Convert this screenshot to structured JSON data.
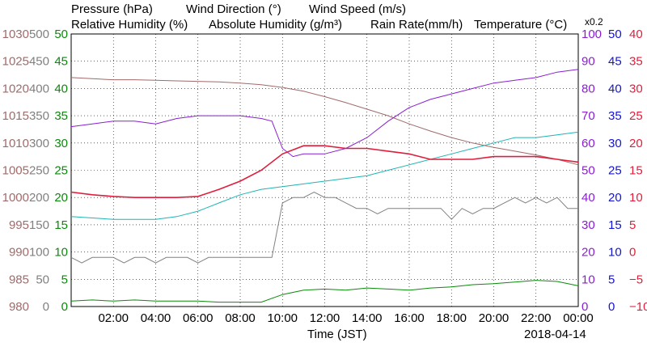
{
  "legend": {
    "pressure": "Pressure (hPa)",
    "wind_direction": "Wind Direction (°)",
    "wind_speed": "Wind Speed (m/s)",
    "relative_humidity": "Relative Humidity (%)",
    "absolute_humidity": "Absolute Humidity (g/m³)",
    "rain_rate": "Rain Rate(mm/h)",
    "temperature": "Temperature (°C)",
    "rain_multiplier": "x0.2"
  },
  "xlabel": "Time (JST)",
  "date_label": "2018-04-14",
  "colors": {
    "pressure": "#a06a6a",
    "wind_direction": "#808080",
    "wind_speed": "#0a8a0a",
    "relative_humidity": "#8a1ed2",
    "absolute_humidity": "#1eb4b4",
    "rain_rate": "#1414d2",
    "temperature": "#e01e3c",
    "grid": "#000000"
  },
  "chart_data": {
    "type": "line",
    "x_ticks": [
      "02:00",
      "04:00",
      "06:00",
      "08:00",
      "10:00",
      "12:00",
      "14:00",
      "16:00",
      "18:00",
      "20:00",
      "22:00",
      "00:00"
    ],
    "x_range_hours": [
      0,
      24
    ],
    "axes": {
      "pressure": {
        "range": [
          980,
          1030
        ],
        "ticks": [
          "1030",
          "1025",
          "1020",
          "1015",
          "1010",
          "1005",
          "1000",
          "995",
          "990",
          "985",
          "980"
        ]
      },
      "wind_direction": {
        "range": [
          0,
          500
        ],
        "ticks": [
          "500",
          "450",
          "400",
          "350",
          "300",
          "250",
          "200",
          "150",
          "100",
          "50",
          "0"
        ]
      },
      "wind_speed": {
        "range": [
          0,
          50
        ],
        "ticks": [
          "50",
          "45",
          "40",
          "35",
          "30",
          "25",
          "20",
          "15",
          "10",
          "5",
          "0"
        ]
      },
      "relative_humidity": {
        "range": [
          0,
          100
        ],
        "ticks": [
          "100",
          "90",
          "80",
          "70",
          "60",
          "50",
          "40",
          "30",
          "20",
          "10",
          "0"
        ]
      },
      "rain_rate": {
        "range": [
          0,
          50
        ],
        "ticks": [
          "50",
          "45",
          "40",
          "35",
          "30",
          "25",
          "20",
          "15",
          "10",
          "5",
          "0"
        ]
      },
      "temperature": {
        "range": [
          -10,
          40
        ],
        "ticks": [
          "40",
          "35",
          "30",
          "25",
          "20",
          "15",
          "10",
          "5",
          "0",
          "−5",
          "−10"
        ]
      }
    },
    "series": [
      {
        "name": "Pressure (hPa)",
        "axis": "pressure",
        "x": [
          0,
          1,
          2,
          3,
          4,
          5,
          6,
          7,
          8,
          9,
          10,
          11,
          12,
          13,
          14,
          15,
          16,
          17,
          18,
          19,
          20,
          21,
          22,
          23,
          24
        ],
        "y": [
          1022.0,
          1021.8,
          1021.6,
          1021.6,
          1021.5,
          1021.4,
          1021.3,
          1021.2,
          1021.0,
          1020.7,
          1020.2,
          1019.5,
          1018.5,
          1017.4,
          1016.2,
          1015.0,
          1013.5,
          1012.2,
          1011.0,
          1010.0,
          1009.2,
          1008.5,
          1007.8,
          1007.0,
          1006.0
        ]
      },
      {
        "name": "Wind Direction (°)",
        "axis": "wind_direction",
        "x": [
          0,
          0.5,
          1,
          1.5,
          2,
          2.5,
          3,
          3.5,
          4,
          4.5,
          5,
          5.5,
          6,
          6.5,
          7,
          7.5,
          8,
          8.5,
          9,
          9.5,
          10,
          10.5,
          11,
          11.5,
          12,
          12.5,
          13,
          13.5,
          14,
          14.5,
          15,
          15.5,
          16,
          16.5,
          17,
          17.5,
          18,
          18.5,
          19,
          19.5,
          20,
          20.5,
          21,
          21.5,
          22,
          22.5,
          23,
          23.5,
          24
        ],
        "y": [
          90,
          80,
          90,
          90,
          90,
          80,
          90,
          90,
          80,
          90,
          90,
          90,
          80,
          90,
          90,
          90,
          90,
          90,
          90,
          90,
          190,
          200,
          200,
          210,
          200,
          200,
          190,
          180,
          180,
          170,
          180,
          180,
          180,
          180,
          180,
          180,
          160,
          180,
          170,
          180,
          180,
          190,
          200,
          190,
          200,
          190,
          200,
          180,
          180
        ]
      },
      {
        "name": "Wind Speed (m/s)",
        "axis": "wind_speed",
        "x": [
          0,
          1,
          2,
          3,
          4,
          5,
          6,
          7,
          8,
          9,
          10,
          11,
          12,
          13,
          14,
          15,
          16,
          17,
          18,
          19,
          20,
          21,
          22,
          23,
          24
        ],
        "y": [
          1.0,
          1.2,
          1.0,
          1.2,
          1.0,
          1.0,
          1.0,
          0.8,
          0.8,
          0.8,
          2.2,
          3.0,
          3.2,
          3.0,
          3.4,
          3.2,
          3.0,
          3.4,
          3.6,
          4.0,
          4.2,
          4.5,
          4.8,
          4.6,
          3.8
        ]
      },
      {
        "name": "Relative Humidity (%)",
        "axis": "relative_humidity",
        "x": [
          0,
          1,
          2,
          3,
          4,
          5,
          6,
          7,
          8,
          9,
          9.5,
          10,
          10.5,
          11,
          12,
          13,
          14,
          15,
          16,
          17,
          18,
          19,
          20,
          21,
          22,
          23,
          24
        ],
        "y": [
          66,
          67,
          68,
          68,
          67,
          69,
          70,
          70,
          70,
          69,
          68,
          58,
          55,
          56,
          56,
          58,
          62,
          68,
          73,
          76,
          78,
          80,
          82,
          83,
          84,
          86,
          87
        ]
      },
      {
        "name": "Absolute Humidity (g/m³)",
        "axis": "relative_humidity",
        "x": [
          0,
          1,
          2,
          3,
          4,
          5,
          6,
          7,
          8,
          9,
          10,
          11,
          12,
          13,
          14,
          15,
          16,
          17,
          18,
          19,
          20,
          21,
          22,
          23,
          24
        ],
        "y": [
          33,
          32.5,
          32,
          32,
          32,
          33,
          35,
          38,
          41,
          43,
          44,
          45,
          46,
          47,
          48,
          50,
          52,
          54,
          56,
          58,
          60,
          62,
          62,
          63,
          64
        ]
      },
      {
        "name": "Temperature (°C)",
        "axis": "temperature",
        "x": [
          0,
          1,
          2,
          3,
          4,
          5,
          6,
          7,
          8,
          9,
          10,
          11,
          12,
          13,
          14,
          15,
          16,
          17,
          18,
          19,
          20,
          21,
          22,
          23,
          24
        ],
        "y": [
          11.0,
          10.5,
          10.2,
          10.0,
          10.0,
          10.0,
          10.2,
          11.5,
          13.0,
          15.0,
          18.0,
          19.5,
          19.5,
          19.0,
          19.0,
          18.5,
          18.0,
          17.0,
          17.0,
          17.0,
          17.5,
          17.5,
          17.5,
          17.0,
          16.5
        ]
      }
    ]
  }
}
